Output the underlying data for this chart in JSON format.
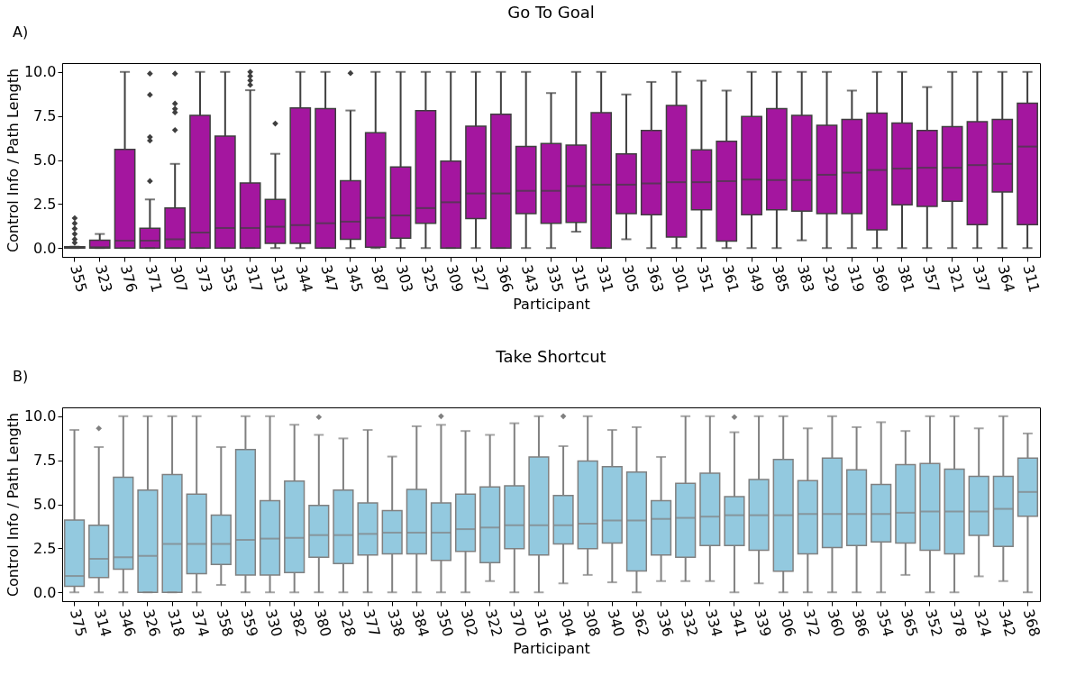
{
  "chart_data": [
    {
      "type": "box",
      "title": "Go To Goal",
      "xlabel": "Participant",
      "ylabel": "Control Info / Path Length",
      "annotations": [
        "A)"
      ],
      "color": "#a4169f",
      "grid": false,
      "marker": "diamond",
      "ylim": [
        -0.5,
        10.5
      ],
      "yticks": [
        {
          "value": 0,
          "label": "0.0"
        },
        {
          "value": 2.5,
          "label": "2.5"
        },
        {
          "value": 5,
          "label": "5.0"
        },
        {
          "value": 7.5,
          "label": "7.5"
        },
        {
          "value": 10,
          "label": "10.0"
        }
      ],
      "categories": [
        "355",
        "323",
        "376",
        "371",
        "307",
        "373",
        "353",
        "317",
        "313",
        "344",
        "347",
        "345",
        "387",
        "303",
        "325",
        "309",
        "327",
        "366",
        "343",
        "335",
        "315",
        "331",
        "305",
        "363",
        "301",
        "351",
        "361",
        "349",
        "385",
        "383",
        "329",
        "319",
        "369",
        "381",
        "357",
        "321",
        "337",
        "364",
        "311"
      ],
      "boxes": [
        {
          "low": 0,
          "q1": 0,
          "median": 0.03,
          "q3": 0.08,
          "high": 0.08,
          "outliers": [
            0.3,
            0.5,
            0.8,
            1.1,
            1.4,
            1.7
          ]
        },
        {
          "low": 0,
          "q1": 0,
          "median": 0.05,
          "q3": 0.45,
          "high": 0.8
        },
        {
          "low": 0,
          "q1": 0,
          "median": 0.42,
          "q3": 5.6,
          "high": 10
        },
        {
          "low": 0,
          "q1": 0,
          "median": 0.42,
          "q3": 1.13,
          "high": 2.76,
          "outliers": [
            3.8,
            6.1,
            6.3,
            8.7,
            9.9
          ]
        },
        {
          "low": 0,
          "q1": 0,
          "median": 0.5,
          "q3": 2.27,
          "high": 4.78,
          "outliers": [
            6.7,
            7.7,
            7.9,
            8.2,
            9.9
          ]
        },
        {
          "low": 0,
          "q1": 0,
          "median": 0.88,
          "q3": 7.53,
          "high": 10
        },
        {
          "low": 0,
          "q1": 0,
          "median": 1.14,
          "q3": 6.35,
          "high": 10
        },
        {
          "low": 0,
          "q1": 0,
          "median": 1.14,
          "q3": 3.69,
          "high": 8.96,
          "outliers": [
            9.26,
            9.51,
            9.76,
            10
          ]
        },
        {
          "low": 0,
          "q1": 0.27,
          "median": 1.21,
          "q3": 2.76,
          "high": 5.35,
          "outliers": [
            7.07
          ]
        },
        {
          "low": 0,
          "q1": 0.27,
          "median": 1.3,
          "q3": 7.96,
          "high": 10
        },
        {
          "low": 0,
          "q1": 0,
          "median": 1.41,
          "q3": 7.91,
          "high": 10
        },
        {
          "low": 0,
          "q1": 0.5,
          "median": 1.5,
          "q3": 3.82,
          "high": 7.81,
          "outliers": [
            9.93
          ]
        },
        {
          "low": 0,
          "q1": 0.05,
          "median": 1.72,
          "q3": 6.55,
          "high": 10
        },
        {
          "low": 0,
          "q1": 0.56,
          "median": 1.85,
          "q3": 4.6,
          "high": 10
        },
        {
          "low": 0,
          "q1": 1.4,
          "median": 2.27,
          "q3": 7.8,
          "high": 10
        },
        {
          "low": 0,
          "q1": 0,
          "median": 2.6,
          "q3": 4.93,
          "high": 10
        },
        {
          "low": 0,
          "q1": 1.67,
          "median": 3.1,
          "q3": 6.92,
          "high": 10
        },
        {
          "low": 0,
          "q1": 0,
          "median": 3.1,
          "q3": 7.6,
          "high": 10
        },
        {
          "low": 0,
          "q1": 1.95,
          "median": 3.25,
          "q3": 5.77,
          "high": 10
        },
        {
          "low": 0,
          "q1": 1.4,
          "median": 3.25,
          "q3": 5.93,
          "high": 8.8
        },
        {
          "low": 0.93,
          "q1": 1.46,
          "median": 3.52,
          "q3": 5.84,
          "high": 10
        },
        {
          "low": 0,
          "q1": 0,
          "median": 3.6,
          "q3": 7.68,
          "high": 10
        },
        {
          "low": 0.5,
          "q1": 1.95,
          "median": 3.6,
          "q3": 5.35,
          "high": 8.72
        },
        {
          "low": 0,
          "q1": 1.89,
          "median": 3.67,
          "q3": 6.68,
          "high": 9.43
        },
        {
          "low": 0,
          "q1": 0.62,
          "median": 3.74,
          "q3": 8.1,
          "high": 10
        },
        {
          "low": 0,
          "q1": 2.17,
          "median": 3.74,
          "q3": 5.57,
          "high": 9.5
        },
        {
          "low": 0,
          "q1": 0.4,
          "median": 3.8,
          "q3": 6.06,
          "high": 8.94
        },
        {
          "low": 0,
          "q1": 1.89,
          "median": 3.89,
          "q3": 7.47,
          "high": 10
        },
        {
          "low": 0,
          "q1": 2.17,
          "median": 3.86,
          "q3": 7.91,
          "high": 10
        },
        {
          "low": 0.44,
          "q1": 2.1,
          "median": 3.86,
          "q3": 7.53,
          "high": 10
        },
        {
          "low": 0,
          "q1": 1.95,
          "median": 4.16,
          "q3": 6.97,
          "high": 10
        },
        {
          "low": 0,
          "q1": 1.95,
          "median": 4.28,
          "q3": 7.3,
          "high": 8.94
        },
        {
          "low": 0,
          "q1": 1.04,
          "median": 4.43,
          "q3": 7.66,
          "high": 10
        },
        {
          "low": 0,
          "q1": 2.46,
          "median": 4.51,
          "q3": 7.1,
          "high": 10
        },
        {
          "low": 0,
          "q1": 2.37,
          "median": 4.56,
          "q3": 6.68,
          "high": 9.14
        },
        {
          "low": 0,
          "q1": 2.66,
          "median": 4.56,
          "q3": 6.89,
          "high": 10
        },
        {
          "low": 0,
          "q1": 1.33,
          "median": 4.71,
          "q3": 7.17,
          "high": 10
        },
        {
          "low": 0,
          "q1": 3.18,
          "median": 4.78,
          "q3": 7.3,
          "high": 10
        },
        {
          "low": 0,
          "q1": 1.33,
          "median": 5.76,
          "q3": 8.22,
          "high": 10
        }
      ]
    },
    {
      "type": "box",
      "title": "Take Shortcut",
      "xlabel": "Participant",
      "ylabel": "Control Info / Path Length",
      "annotations": [
        "B)"
      ],
      "color": "#93c9df",
      "grid": false,
      "marker": "diamond",
      "ylim": [
        -0.5,
        10.5
      ],
      "yticks": [
        {
          "value": 0,
          "label": "0.0"
        },
        {
          "value": 2.5,
          "label": "2.5"
        },
        {
          "value": 5,
          "label": "5.0"
        },
        {
          "value": 7.5,
          "label": "7.5"
        },
        {
          "value": 10,
          "label": "10.0"
        }
      ],
      "categories": [
        "375",
        "314",
        "346",
        "326",
        "318",
        "374",
        "358",
        "359",
        "330",
        "382",
        "380",
        "328",
        "377",
        "338",
        "384",
        "350",
        "302",
        "322",
        "370",
        "316",
        "304",
        "308",
        "340",
        "362",
        "336",
        "332",
        "334",
        "341",
        "339",
        "306",
        "372",
        "360",
        "386",
        "354",
        "365",
        "352",
        "378",
        "324",
        "342",
        "368"
      ],
      "boxes": [
        {
          "low": 0,
          "q1": 0.34,
          "median": 0.93,
          "q3": 4.1,
          "high": 9.22
        },
        {
          "low": 0,
          "q1": 0.84,
          "median": 1.9,
          "q3": 3.81,
          "high": 8.25,
          "outliers": [
            9.31
          ]
        },
        {
          "low": 0,
          "q1": 1.32,
          "median": 1.99,
          "q3": 6.54,
          "high": 10
        },
        {
          "low": 0,
          "q1": 0,
          "median": 2.07,
          "q3": 5.8,
          "high": 10
        },
        {
          "low": 0,
          "q1": 0,
          "median": 2.75,
          "q3": 6.69,
          "high": 10
        },
        {
          "low": 0,
          "q1": 1.06,
          "median": 2.75,
          "q3": 5.58,
          "high": 10
        },
        {
          "low": 0.42,
          "q1": 1.59,
          "median": 2.75,
          "q3": 4.38,
          "high": 8.25
        },
        {
          "low": 0,
          "q1": 0.98,
          "median": 2.98,
          "q3": 8.11,
          "high": 10
        },
        {
          "low": 0,
          "q1": 0.98,
          "median": 3.05,
          "q3": 5.21,
          "high": 10
        },
        {
          "low": 0,
          "q1": 1.13,
          "median": 3.1,
          "q3": 6.32,
          "high": 9.51
        },
        {
          "low": 0,
          "q1": 1.99,
          "median": 3.25,
          "q3": 4.94,
          "high": 8.94,
          "outliers": [
            9.95
          ]
        },
        {
          "low": 0,
          "q1": 1.64,
          "median": 3.25,
          "q3": 5.8,
          "high": 8.74
        },
        {
          "low": 0,
          "q1": 2.12,
          "median": 3.32,
          "q3": 5.08,
          "high": 9.22
        },
        {
          "low": 0,
          "q1": 2.18,
          "median": 3.39,
          "q3": 4.64,
          "high": 7.71
        },
        {
          "low": 0,
          "q1": 2.18,
          "median": 3.39,
          "q3": 5.85,
          "high": 9.43
        },
        {
          "low": 0,
          "q1": 1.82,
          "median": 3.39,
          "q3": 5.08,
          "high": 9.51,
          "outliers": [
            10
          ]
        },
        {
          "low": 0,
          "q1": 2.33,
          "median": 3.59,
          "q3": 5.58,
          "high": 9.16
        },
        {
          "low": 0.64,
          "q1": 1.69,
          "median": 3.68,
          "q3": 5.99,
          "high": 8.94
        },
        {
          "low": 0,
          "q1": 2.48,
          "median": 3.81,
          "q3": 6.05,
          "high": 9.6
        },
        {
          "low": 0,
          "q1": 2.12,
          "median": 3.81,
          "q3": 7.69,
          "high": 10
        },
        {
          "low": 0.51,
          "q1": 2.75,
          "median": 3.81,
          "q3": 5.5,
          "high": 8.3,
          "outliers": [
            10
          ]
        },
        {
          "low": 0.99,
          "q1": 2.48,
          "median": 3.9,
          "q3": 7.45,
          "high": 10
        },
        {
          "low": 0.57,
          "q1": 2.8,
          "median": 4.08,
          "q3": 7.13,
          "high": 9.22
        },
        {
          "low": 0,
          "q1": 1.21,
          "median": 4.08,
          "q3": 6.83,
          "high": 9.38
        },
        {
          "low": 0.64,
          "q1": 2.12,
          "median": 4.17,
          "q3": 5.21,
          "high": 7.69
        },
        {
          "low": 0.64,
          "q1": 1.99,
          "median": 4.23,
          "q3": 6.19,
          "high": 10
        },
        {
          "low": 0.64,
          "q1": 2.66,
          "median": 4.3,
          "q3": 6.76,
          "high": 10
        },
        {
          "low": 0,
          "q1": 2.66,
          "median": 4.38,
          "q3": 5.43,
          "high": 9.09,
          "outliers": [
            9.95
          ]
        },
        {
          "low": 0.51,
          "q1": 2.39,
          "median": 4.38,
          "q3": 6.41,
          "high": 10
        },
        {
          "low": 0,
          "q1": 1.2,
          "median": 4.38,
          "q3": 7.54,
          "high": 10
        },
        {
          "low": 0,
          "q1": 2.18,
          "median": 4.45,
          "q3": 6.34,
          "high": 9.31
        },
        {
          "low": 0,
          "q1": 2.55,
          "median": 4.45,
          "q3": 7.62,
          "high": 10
        },
        {
          "low": 0,
          "q1": 2.66,
          "median": 4.45,
          "q3": 6.96,
          "high": 9.38
        },
        {
          "low": 0,
          "q1": 2.87,
          "median": 4.45,
          "q3": 6.12,
          "high": 9.66
        },
        {
          "low": 0.99,
          "q1": 2.8,
          "median": 4.52,
          "q3": 7.25,
          "high": 9.16
        },
        {
          "low": 0,
          "q1": 2.39,
          "median": 4.59,
          "q3": 7.32,
          "high": 10
        },
        {
          "low": 0,
          "q1": 2.18,
          "median": 4.59,
          "q3": 7.0,
          "high": 10
        },
        {
          "low": 0.91,
          "q1": 3.24,
          "median": 4.59,
          "q3": 6.59,
          "high": 9.31
        },
        {
          "low": 0.64,
          "q1": 2.61,
          "median": 4.74,
          "q3": 6.59,
          "high": 10
        },
        {
          "low": 0,
          "q1": 4.32,
          "median": 5.7,
          "q3": 7.62,
          "high": 9.02
        }
      ]
    }
  ]
}
